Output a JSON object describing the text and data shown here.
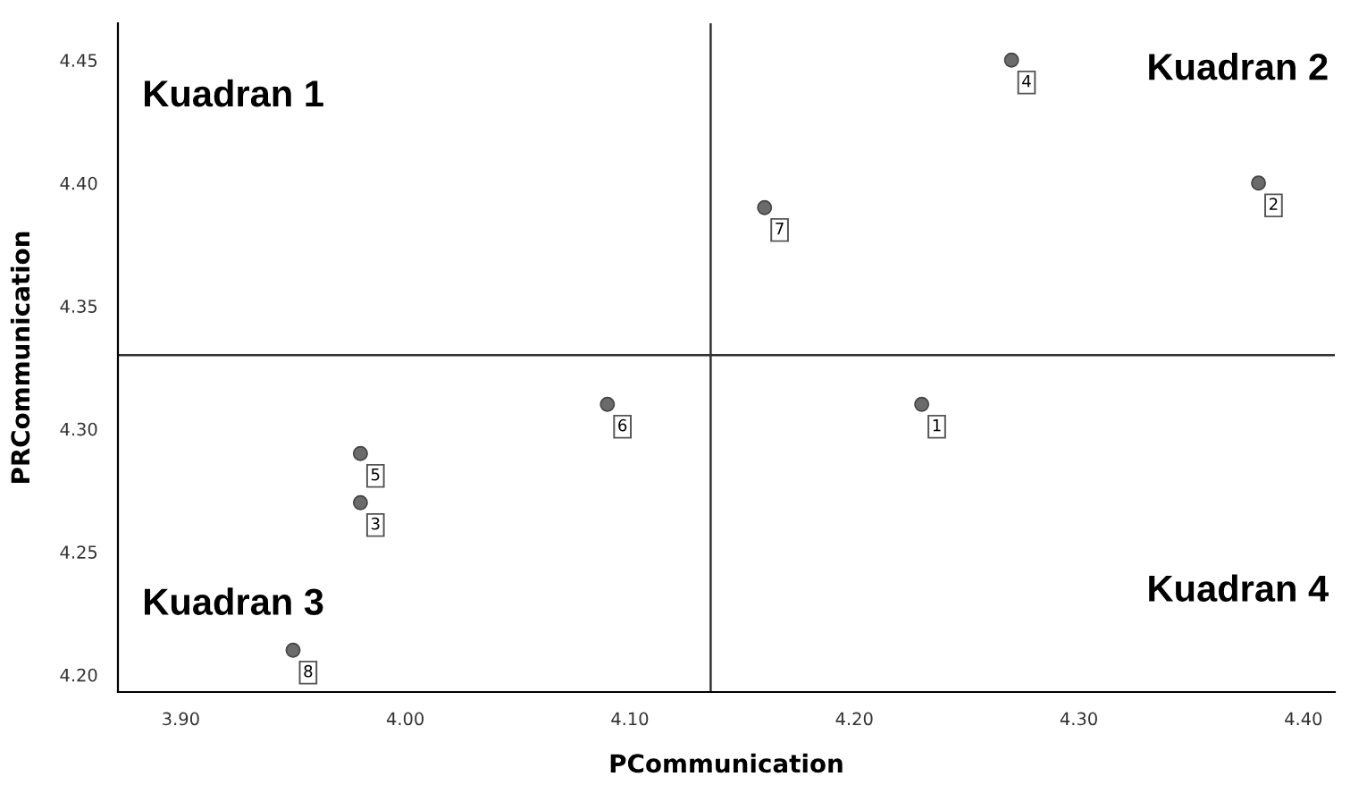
{
  "chart_data": {
    "type": "scatter",
    "xlabel": "PCommunication",
    "ylabel": "PRCommunication",
    "x": [
      4.23,
      4.38,
      3.98,
      4.27,
      3.98,
      4.09,
      4.16,
      3.95
    ],
    "series": [
      {
        "color": "#6b6b6b",
        "values": [
          4.31,
          4.4,
          4.27,
          4.45,
          4.29,
          4.31,
          4.39,
          4.21
        ]
      }
    ],
    "marker": "circle",
    "grid": false,
    "xlim": [
      3.872,
      4.414
    ],
    "ylim": [
      4.193,
      4.465
    ],
    "xticks": [
      {
        "value": 3.9,
        "label": "3.90"
      },
      {
        "value": 4.0,
        "label": "4.00"
      },
      {
        "value": 4.1,
        "label": "4.10"
      },
      {
        "value": 4.2,
        "label": "4.20"
      },
      {
        "value": 4.3,
        "label": "4.30"
      },
      {
        "value": 4.4,
        "label": "4.40"
      }
    ],
    "yticks": [
      {
        "value": 4.2,
        "label": "4.20"
      },
      {
        "value": 4.25,
        "label": "4.25"
      },
      {
        "value": 4.3,
        "label": "4.30"
      },
      {
        "value": 4.35,
        "label": "4.35"
      },
      {
        "value": 4.4,
        "label": "4.40"
      },
      {
        "value": 4.45,
        "label": "4.45"
      }
    ],
    "ref_lines": [
      {
        "axis": "x",
        "value": 4.136,
        "color": "#333333"
      },
      {
        "axis": "y",
        "value": 4.33,
        "color": "#333333"
      }
    ],
    "annotations": [
      "Kuadran 1",
      "Kuadran 2",
      "Kuadran 3",
      "Kuadran 4",
      {
        "text": "1",
        "x": 4.23,
        "y": 4.31
      },
      {
        "text": "2",
        "x": 4.38,
        "y": 4.4
      },
      {
        "text": "3",
        "x": 3.98,
        "y": 4.27
      },
      {
        "text": "4",
        "x": 4.27,
        "y": 4.45
      },
      {
        "text": "5",
        "x": 3.98,
        "y": 4.29
      },
      {
        "text": "6",
        "x": 4.09,
        "y": 4.31
      },
      {
        "text": "7",
        "x": 4.16,
        "y": 4.39
      },
      {
        "text": "8",
        "x": 3.95,
        "y": 4.21
      }
    ]
  }
}
